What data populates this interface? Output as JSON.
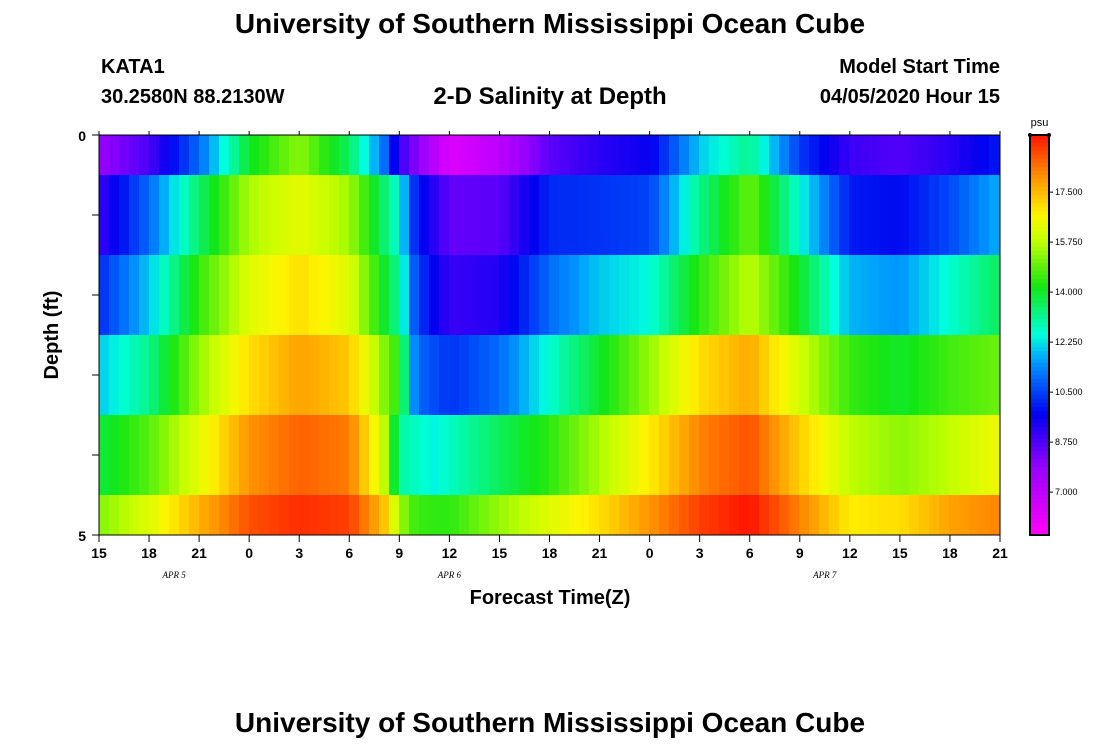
{
  "header": {
    "title": "University of Southern Mississippi Ocean Cube",
    "station_id": "KATA1",
    "station_coords": "30.2580N 88.2130W",
    "chart_title": "2-D Salinity at Depth",
    "model_start_label": "Model Start Time",
    "model_start_value": "04/05/2020 Hour 15"
  },
  "footer": {
    "title": "University of Southern Mississippi Ocean Cube"
  },
  "chart_data": {
    "type": "heatmap",
    "title": "2-D Salinity at Depth",
    "xlabel": "Forecast Time(Z)",
    "ylabel": "Depth (ft)",
    "y_tick_labels": [
      "0",
      "5"
    ],
    "ylim": [
      0,
      5
    ],
    "x_tick_labels": [
      "15",
      "18",
      "21",
      "0",
      "3",
      "6",
      "9",
      "12",
      "15",
      "18",
      "21",
      "0",
      "3",
      "6",
      "9",
      "12",
      "15",
      "18",
      "21"
    ],
    "date_labels": [
      {
        "label": "APR 5",
        "at_hour": 4.5
      },
      {
        "label": "APR 6",
        "at_hour": 21
      },
      {
        "label": "APR 7",
        "at_hour": 43.5
      }
    ],
    "x_hours_range": [
      0,
      54
    ],
    "colorbar": {
      "unit": "psu",
      "min": 5.5,
      "max": 19.5,
      "tick_labels": [
        "7.000",
        "8.750",
        "10.500",
        "12.250",
        "14.000",
        "15.750",
        "17.500"
      ],
      "tick_values": [
        7.0,
        8.75,
        10.5,
        12.25,
        14.0,
        15.75,
        17.5
      ]
    },
    "depth_layers": [
      {
        "keys": [
          [
            0,
            7.8
          ],
          [
            3,
            8.8
          ],
          [
            6,
            11.0
          ],
          [
            9,
            14.0
          ],
          [
            12,
            15.3
          ],
          [
            15,
            13.5
          ],
          [
            17,
            11.2
          ],
          [
            18,
            9.0
          ],
          [
            21,
            6.3
          ],
          [
            24,
            7.0
          ],
          [
            27,
            8.6
          ],
          [
            30,
            9.2
          ],
          [
            33,
            9.6
          ],
          [
            36,
            12.0
          ],
          [
            39,
            13.2
          ],
          [
            42,
            10.4
          ],
          [
            45,
            9.0
          ],
          [
            48,
            8.7
          ],
          [
            51,
            9.2
          ],
          [
            54,
            10.0
          ]
        ]
      },
      {
        "keys": [
          [
            0,
            9.0
          ],
          [
            3,
            11.0
          ],
          [
            6,
            13.5
          ],
          [
            9,
            15.6
          ],
          [
            12,
            16.3
          ],
          [
            15,
            15.5
          ],
          [
            18,
            12.5
          ],
          [
            19,
            10.0
          ],
          [
            21,
            8.5
          ],
          [
            24,
            8.6
          ],
          [
            27,
            10.2
          ],
          [
            30,
            10.3
          ],
          [
            33,
            10.5
          ],
          [
            36,
            13.2
          ],
          [
            39,
            15.0
          ],
          [
            42,
            12.5
          ],
          [
            45,
            10.0
          ],
          [
            48,
            9.8
          ],
          [
            51,
            10.6
          ],
          [
            54,
            11.8
          ]
        ]
      },
      {
        "keys": [
          [
            0,
            10.2
          ],
          [
            3,
            12.0
          ],
          [
            6,
            14.5
          ],
          [
            9,
            16.2
          ],
          [
            12,
            17.0
          ],
          [
            15,
            16.2
          ],
          [
            18,
            13.0
          ],
          [
            19,
            10.5
          ],
          [
            21,
            9.0
          ],
          [
            24,
            9.3
          ],
          [
            27,
            11.0
          ],
          [
            30,
            12.0
          ],
          [
            33,
            12.5
          ],
          [
            36,
            14.4
          ],
          [
            39,
            15.8
          ],
          [
            42,
            14.0
          ],
          [
            45,
            11.8
          ],
          [
            48,
            11.5
          ],
          [
            51,
            12.6
          ],
          [
            54,
            13.6
          ]
        ]
      },
      {
        "keys": [
          [
            0,
            12.0
          ],
          [
            3,
            13.2
          ],
          [
            6,
            15.4
          ],
          [
            9,
            17.0
          ],
          [
            12,
            17.8
          ],
          [
            15,
            17.3
          ],
          [
            18,
            14.3
          ],
          [
            19,
            11.0
          ],
          [
            21,
            10.3
          ],
          [
            24,
            11.0
          ],
          [
            27,
            12.6
          ],
          [
            30,
            14.0
          ],
          [
            33,
            15.4
          ],
          [
            36,
            17.0
          ],
          [
            39,
            17.7
          ],
          [
            42,
            16.0
          ],
          [
            45,
            14.5
          ],
          [
            48,
            14.0
          ],
          [
            51,
            14.6
          ],
          [
            54,
            15.0
          ]
        ]
      },
      {
        "keys": [
          [
            0,
            13.8
          ],
          [
            3,
            14.8
          ],
          [
            6,
            16.3
          ],
          [
            9,
            18.0
          ],
          [
            12,
            18.6
          ],
          [
            15,
            18.3
          ],
          [
            17,
            16.0
          ],
          [
            18,
            13.0
          ],
          [
            20,
            12.4
          ],
          [
            24,
            13.6
          ],
          [
            27,
            14.4
          ],
          [
            30,
            15.6
          ],
          [
            33,
            16.8
          ],
          [
            36,
            18.2
          ],
          [
            39,
            18.8
          ],
          [
            42,
            17.2
          ],
          [
            45,
            15.8
          ],
          [
            48,
            15.3
          ],
          [
            51,
            15.8
          ],
          [
            54,
            16.5
          ]
        ]
      },
      {
        "keys": [
          [
            0,
            15.2
          ],
          [
            3,
            16.2
          ],
          [
            6,
            17.6
          ],
          [
            9,
            18.8
          ],
          [
            12,
            19.2
          ],
          [
            15,
            19.0
          ],
          [
            17,
            17.5
          ],
          [
            18,
            15.5
          ],
          [
            19,
            14.5
          ],
          [
            21,
            14.4
          ],
          [
            24,
            15.4
          ],
          [
            27,
            16.2
          ],
          [
            30,
            17.0
          ],
          [
            33,
            18.0
          ],
          [
            36,
            19.0
          ],
          [
            39,
            19.5
          ],
          [
            42,
            18.2
          ],
          [
            45,
            16.8
          ],
          [
            48,
            17.0
          ],
          [
            51,
            17.8
          ],
          [
            54,
            18.2
          ]
        ]
      }
    ]
  }
}
